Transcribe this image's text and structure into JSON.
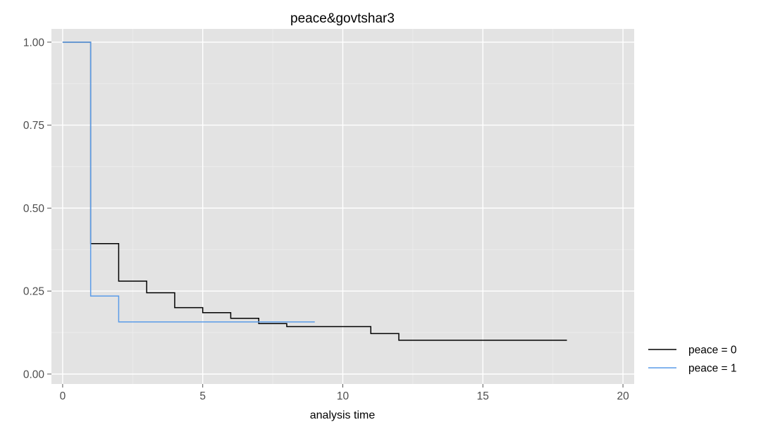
{
  "chart_data": {
    "type": "line",
    "title": "peace&govtshar3",
    "xlabel": "analysis time",
    "ylabel": "",
    "xlim": [
      -0.4,
      20.4
    ],
    "ylim": [
      -0.03,
      1.04
    ],
    "x_ticks": [
      0,
      5,
      10,
      15,
      20
    ],
    "x_tick_labels": [
      "0",
      "5",
      "10",
      "15",
      "20"
    ],
    "y_ticks": [
      0,
      0.25,
      0.5,
      0.75,
      1
    ],
    "y_tick_labels": [
      "0.00",
      "0.25",
      "0.50",
      "0.75",
      "1.00"
    ],
    "grid": true,
    "legend_position": "right",
    "step": true,
    "series": [
      {
        "name": "peace = 0",
        "color": "#000000",
        "x": [
          0,
          1,
          2,
          3,
          4,
          5,
          6,
          7,
          8,
          11,
          12,
          18
        ],
        "y": [
          1.0,
          0.393,
          0.28,
          0.245,
          0.2,
          0.185,
          0.168,
          0.152,
          0.143,
          0.122,
          0.102,
          0.102
        ]
      },
      {
        "name": "peace = 1",
        "color": "#5a9be8",
        "x": [
          0,
          1,
          2,
          9
        ],
        "y": [
          1.0,
          0.235,
          0.157,
          0.157
        ]
      }
    ]
  }
}
